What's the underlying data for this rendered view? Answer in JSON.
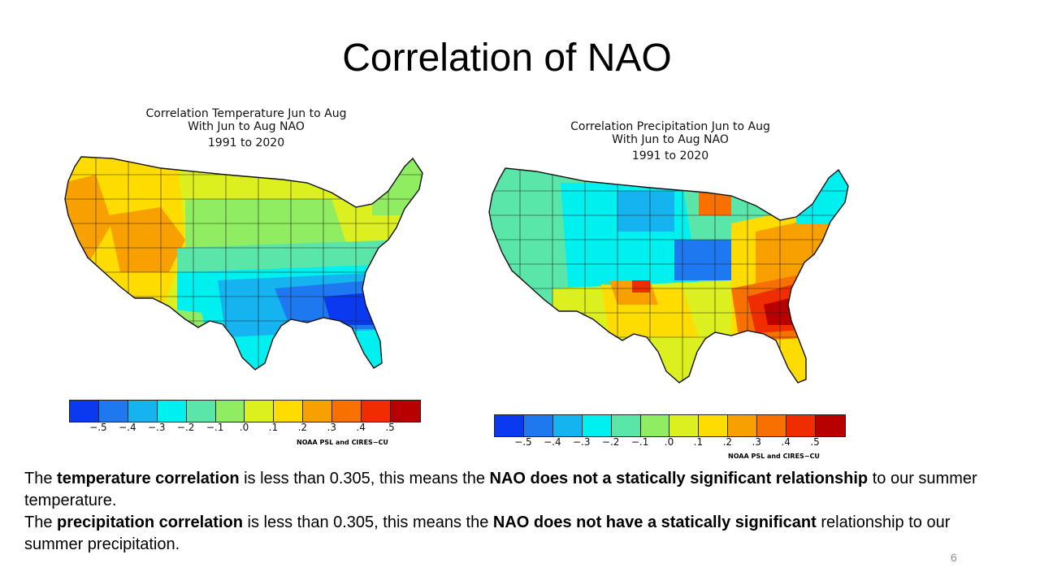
{
  "slide": {
    "title": "Correlation of NAO",
    "page_number": "6"
  },
  "colorscale": [
    "#0a39f0",
    "#1e78f0",
    "#15b4f0",
    "#00f0f0",
    "#5ae6a8",
    "#90ec60",
    "#dcf020",
    "#ffdc00",
    "#f8a000",
    "#f87000",
    "#f02d00",
    "#b90000"
  ],
  "tick_labels": [
    "−.5",
    "−.4",
    "−.3",
    "−.2",
    "−.1",
    ".0",
    ".1",
    ".2",
    ".3",
    ".4",
    ".5"
  ],
  "left_map": {
    "title_line1": "Correlation Temperature Jun to Aug",
    "title_line2": "With Jun to Aug NAO",
    "title_line3": "1991 to 2020",
    "credit": "NOAA PSL and CIRES−CU"
  },
  "right_map": {
    "title_line1": "Correlation Precipitation Jun to Aug",
    "title_line2": "With Jun to Aug NAO",
    "title_line3": "1991 to 2020",
    "credit": "NOAA PSL and CIRES−CU"
  },
  "paragraph1": {
    "t1": "The ",
    "b1": "temperature correlation",
    "t2": " is less than 0.305, this means the ",
    "b2": "NAO does not a statically significant relationship",
    "t3": " to our summer temperature."
  },
  "paragraph2": {
    "t1": "The ",
    "b1": "precipitation correlation",
    "t2": " is less than 0.305, this means the ",
    "b2": "NAO does not have a statically significant",
    "t3": " relationship to our summer precipitation."
  }
}
